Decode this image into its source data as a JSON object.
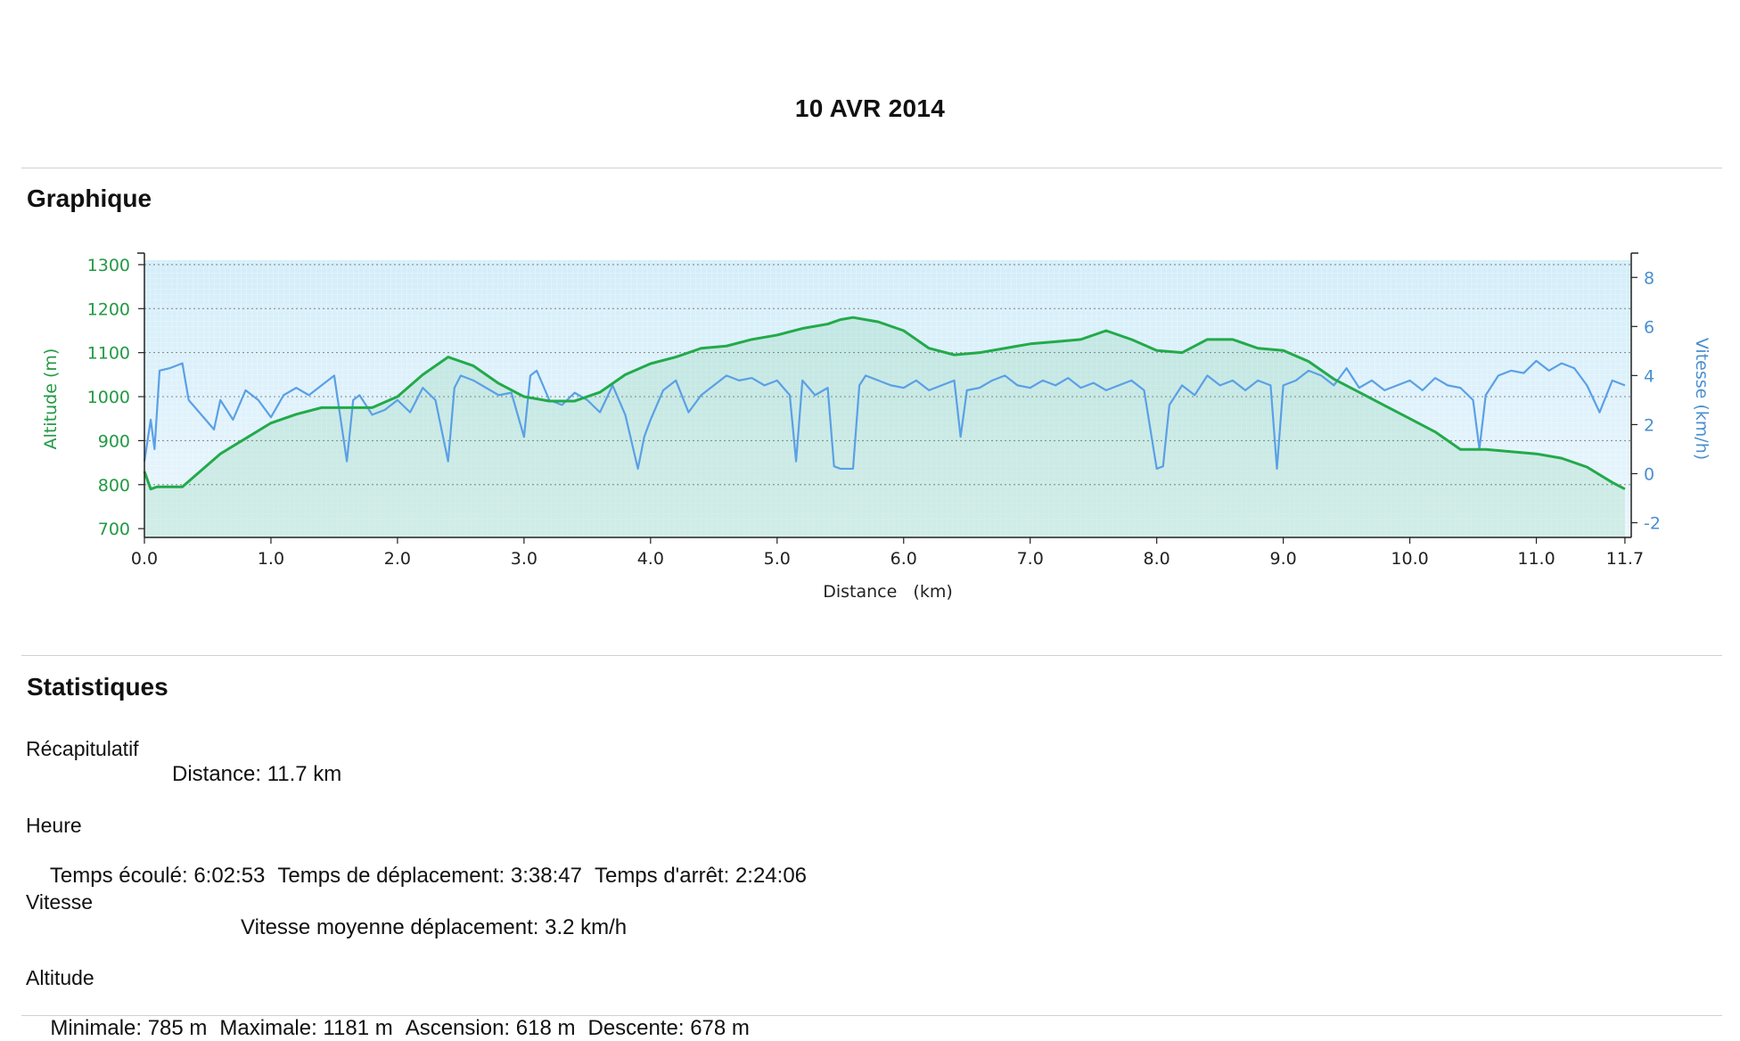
{
  "header": {
    "title": "10 AVR 2014"
  },
  "sections": {
    "graph_title": "Graphique",
    "stats_title": "Statistiques"
  },
  "stats": {
    "recap": {
      "heading": "Récapitulatif",
      "distance": "Distance: 11.7 km"
    },
    "time": {
      "heading": "Heure",
      "elapsed": "Temps écoulé: 6:02:53",
      "moving": "Temps de déplacement: 3:38:47",
      "stopped": "Temps d'arrêt: 2:24:06"
    },
    "speed": {
      "heading": "Vitesse",
      "avg_moving": "Vitesse moyenne déplacement: 3.2 km/h"
    },
    "altitude": {
      "heading": "Altitude",
      "min": "Minimale: 785 m",
      "max": "Maximale: 1181 m",
      "ascent": "Ascension: 618 m",
      "descent": "Descente: 678 m"
    }
  },
  "chart_data": {
    "type": "line",
    "xlabel": "Distance   (km)",
    "ylabel_left": "Altitude (m)",
    "ylabel_right": "Vitesse (km/h)",
    "xlim": [
      0,
      11.75
    ],
    "ylim_left": [
      680,
      1310
    ],
    "ylim_right": [
      -2.6,
      8.7
    ],
    "x_ticks": [
      "0.0",
      "1.0",
      "2.0",
      "3.0",
      "4.0",
      "5.0",
      "6.0",
      "7.0",
      "8.0",
      "9.0",
      "10.0",
      "11.0",
      "11.7"
    ],
    "x_tick_values": [
      0,
      1,
      2,
      3,
      4,
      5,
      6,
      7,
      8,
      9,
      10,
      11,
      11.7
    ],
    "y_left_ticks": [
      700,
      800,
      900,
      1000,
      1100,
      1200,
      1300
    ],
    "y_right_ticks": [
      -2,
      0,
      2,
      4,
      6,
      8
    ],
    "grid": true,
    "colors": {
      "altitude": "#22aa4a",
      "speed": "#5aa0e6",
      "plot_bg_top": "#d4eef9",
      "plot_bg_bottom": "#eaf5fd"
    },
    "series": [
      {
        "name": "Altitude (m)",
        "axis": "left",
        "x": [
          0,
          0.05,
          0.1,
          0.3,
          0.4,
          0.6,
          0.8,
          1.0,
          1.2,
          1.4,
          1.6,
          1.8,
          2.0,
          2.2,
          2.4,
          2.6,
          2.8,
          3.0,
          3.2,
          3.4,
          3.6,
          3.8,
          4.0,
          4.2,
          4.4,
          4.6,
          4.8,
          5.0,
          5.2,
          5.4,
          5.5,
          5.6,
          5.8,
          6.0,
          6.2,
          6.4,
          6.6,
          6.8,
          7.0,
          7.2,
          7.4,
          7.6,
          7.8,
          8.0,
          8.2,
          8.4,
          8.6,
          8.8,
          9.0,
          9.2,
          9.4,
          9.6,
          9.8,
          10.0,
          10.2,
          10.4,
          10.6,
          10.8,
          11.0,
          11.2,
          11.4,
          11.6,
          11.7
        ],
        "values": [
          830,
          790,
          795,
          795,
          820,
          870,
          905,
          940,
          960,
          975,
          975,
          975,
          1000,
          1050,
          1090,
          1070,
          1030,
          1000,
          990,
          990,
          1010,
          1050,
          1075,
          1090,
          1110,
          1115,
          1130,
          1140,
          1155,
          1165,
          1175,
          1180,
          1170,
          1150,
          1110,
          1095,
          1100,
          1110,
          1120,
          1125,
          1130,
          1150,
          1130,
          1105,
          1100,
          1130,
          1130,
          1110,
          1105,
          1080,
          1040,
          1010,
          980,
          950,
          920,
          880,
          880,
          875,
          870,
          860,
          840,
          805,
          790
        ]
      },
      {
        "name": "Vitesse (km/h)",
        "axis": "right",
        "x": [
          0,
          0.05,
          0.08,
          0.12,
          0.2,
          0.3,
          0.35,
          0.45,
          0.55,
          0.6,
          0.7,
          0.8,
          0.9,
          1.0,
          1.1,
          1.2,
          1.3,
          1.4,
          1.5,
          1.6,
          1.65,
          1.7,
          1.8,
          1.9,
          2.0,
          2.1,
          2.2,
          2.3,
          2.4,
          2.45,
          2.5,
          2.6,
          2.7,
          2.8,
          2.9,
          3.0,
          3.05,
          3.1,
          3.2,
          3.3,
          3.4,
          3.5,
          3.6,
          3.7,
          3.8,
          3.9,
          3.95,
          4.0,
          4.1,
          4.2,
          4.3,
          4.4,
          4.5,
          4.6,
          4.7,
          4.8,
          4.9,
          5.0,
          5.1,
          5.15,
          5.2,
          5.3,
          5.4,
          5.45,
          5.5,
          5.6,
          5.65,
          5.7,
          5.8,
          5.9,
          6.0,
          6.1,
          6.2,
          6.3,
          6.4,
          6.45,
          6.5,
          6.6,
          6.7,
          6.8,
          6.9,
          7.0,
          7.1,
          7.2,
          7.3,
          7.4,
          7.5,
          7.6,
          7.7,
          7.8,
          7.9,
          8.0,
          8.05,
          8.1,
          8.2,
          8.3,
          8.4,
          8.5,
          8.6,
          8.7,
          8.8,
          8.9,
          8.95,
          9.0,
          9.1,
          9.2,
          9.3,
          9.4,
          9.5,
          9.6,
          9.7,
          9.8,
          9.9,
          10.0,
          10.1,
          10.2,
          10.3,
          10.4,
          10.5,
          10.55,
          10.6,
          10.7,
          10.8,
          10.9,
          11.0,
          11.1,
          11.2,
          11.3,
          11.4,
          11.5,
          11.6,
          11.7
        ],
        "values": [
          0.5,
          2.2,
          1.0,
          4.2,
          4.3,
          4.5,
          3.0,
          2.4,
          1.8,
          3.0,
          2.2,
          3.4,
          3.0,
          2.3,
          3.2,
          3.5,
          3.2,
          3.6,
          4.0,
          0.5,
          3.0,
          3.2,
          2.4,
          2.6,
          3.0,
          2.5,
          3.5,
          3.0,
          0.5,
          3.5,
          4.0,
          3.8,
          3.5,
          3.2,
          3.3,
          1.5,
          4.0,
          4.2,
          3.0,
          2.8,
          3.3,
          3.0,
          2.5,
          3.6,
          2.4,
          0.2,
          1.5,
          2.2,
          3.4,
          3.8,
          2.5,
          3.2,
          3.6,
          4.0,
          3.8,
          3.9,
          3.6,
          3.8,
          3.2,
          0.5,
          3.8,
          3.2,
          3.5,
          0.3,
          0.2,
          0.2,
          3.6,
          4.0,
          3.8,
          3.6,
          3.5,
          3.8,
          3.4,
          3.6,
          3.8,
          1.5,
          3.4,
          3.5,
          3.8,
          4.0,
          3.6,
          3.5,
          3.8,
          3.6,
          3.9,
          3.5,
          3.7,
          3.4,
          3.6,
          3.8,
          3.4,
          0.2,
          0.3,
          2.8,
          3.6,
          3.2,
          4.0,
          3.6,
          3.8,
          3.4,
          3.8,
          3.6,
          0.2,
          3.6,
          3.8,
          4.2,
          4.0,
          3.6,
          4.3,
          3.5,
          3.8,
          3.4,
          3.6,
          3.8,
          3.4,
          3.9,
          3.6,
          3.5,
          3.0,
          1.0,
          3.2,
          4.0,
          4.2,
          4.1,
          4.6,
          4.2,
          4.5,
          4.3,
          3.6,
          2.5,
          3.8,
          3.6
        ]
      }
    ]
  }
}
